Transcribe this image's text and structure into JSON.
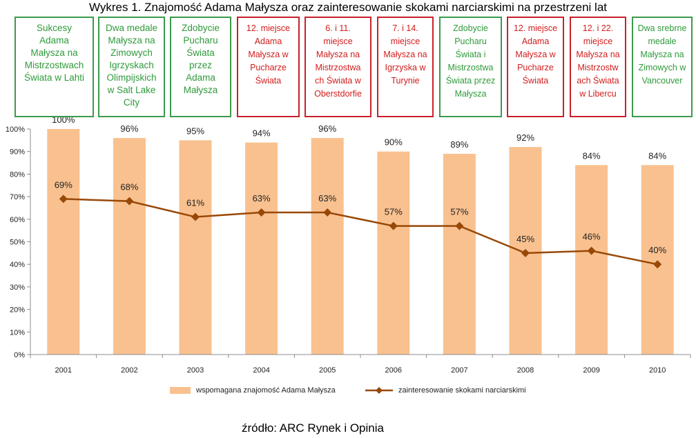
{
  "title": "Wykres 1. Znajomość Adama Małysza oraz zainteresowanie skokami narciarskimi na przestrzeni lat",
  "source": "źródło: ARC Rynek i Opinia",
  "colors": {
    "bar": "#f9c18f",
    "line": "#984807",
    "green": "#2e9a3a",
    "red": "#d21c1c"
  },
  "events": [
    {
      "text": "Sukcesy Adama Małysza na Mistrzostwach Świata w Lahti",
      "lines": [
        "Sukcesy",
        "Adama",
        "Małysza na",
        "Mistrzostwach",
        "Świata w Lahti"
      ],
      "tone": "green"
    },
    {
      "text": "Dwa medale Małysza na Zimowych Igrzyskach Olimpijskich w Salt Lake City",
      "lines": [
        "Dwa medale",
        "Małysza na",
        "Zimowych",
        "Igrzyskach",
        "Olimpijskich",
        "w Salt Lake",
        "City"
      ],
      "tone": "green"
    },
    {
      "text": "Zdobycie Pucharu Świata przez Adama Małysza",
      "lines": [
        "Zdobycie",
        "Pucharu",
        "Świata",
        "przez",
        "Adama",
        "Małysza"
      ],
      "tone": "green"
    },
    {
      "text": "12. miejsce Adama Małysza w Pucharze Świata",
      "lines": [
        "12. miejsce",
        "Adama",
        "Małysza w",
        "Pucharze",
        "Świata"
      ],
      "tone": "red"
    },
    {
      "text": "6. i 11. miejsce Małysza na Mistrzostwach Świata w Oberstdorfie",
      "lines": [
        "6. i 11.",
        "miejsce",
        "Małysza na",
        "Mistrzostwa",
        "ch Świata w",
        "Oberstdorfie"
      ],
      "tone": "red"
    },
    {
      "text": "7. i 14. miejsce Małysza na Igrzyska w Turynie",
      "lines": [
        "7. i 14.",
        "miejsce",
        "Małysza na",
        "Igrzyska w",
        "Turynie"
      ],
      "tone": "red"
    },
    {
      "text": "Zdobycie Pucharu Świata i Mistrzostwa Świata przez Małysza",
      "lines": [
        "Zdobycie",
        "Pucharu",
        "Świata  i",
        "Mistrzostwa",
        "Świata przez",
        "Małysza"
      ],
      "tone": "green"
    },
    {
      "text": "12. miejsce Adama Małysza w Pucharze Świata",
      "lines": [
        "12. miejsce",
        "Adama",
        "Małysza w",
        "Pucharze",
        "Świata"
      ],
      "tone": "red"
    },
    {
      "text": "12. i 22. miejsce Małysza na Mistrzostwach Świata w Libercu",
      "lines": [
        "12. i  22.",
        "miejsce",
        "Małysza na",
        "Mistrzostw",
        "ach Świata",
        "w  Libercu"
      ],
      "tone": "red"
    },
    {
      "text": "Dwa srebrne medale Małysza na Zimowych w Vancouver",
      "lines": [
        "Dwa srebrne",
        "medale",
        "Małysza na",
        "Zimowych w",
        "Vancouver"
      ],
      "tone": "green"
    }
  ],
  "chart_data": {
    "type": "bar",
    "title": "Wykres 1. Znajomość Adama Małysza oraz zainteresowanie skokami narciarskimi na przestrzeni lat",
    "categories": [
      "2001",
      "2002",
      "2003",
      "2004",
      "2005",
      "2006",
      "2007",
      "2008",
      "2009",
      "2010"
    ],
    "series": [
      {
        "name": "wspomagana znajomość Adama Małysza",
        "kind": "bar",
        "values": [
          100,
          96,
          95,
          94,
          96,
          90,
          89,
          92,
          84,
          84
        ],
        "labels": [
          "100%",
          "96%",
          "95%",
          "94%",
          "96%",
          "90%",
          "89%",
          "92%",
          "84%",
          "84%"
        ]
      },
      {
        "name": "zainteresowanie skokami narciarskimi",
        "kind": "line",
        "values": [
          69,
          68,
          61,
          63,
          63,
          57,
          57,
          45,
          46,
          40
        ],
        "labels": [
          "69%",
          "68%",
          "61%",
          "63%",
          "63%",
          "57%",
          "57%",
          "45%",
          "46%",
          "40%"
        ]
      }
    ],
    "yticks": [
      "0%",
      "10%",
      "20%",
      "30%",
      "40%",
      "50%",
      "60%",
      "70%",
      "80%",
      "90%",
      "100%"
    ],
    "ylim": [
      0,
      100
    ],
    "xlabel": "",
    "ylabel": "",
    "legend_position": "bottom",
    "grid": false
  }
}
